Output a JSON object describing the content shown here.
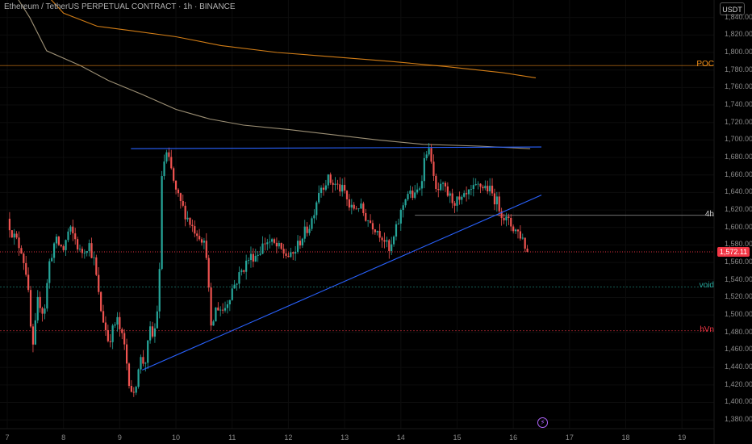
{
  "header": {
    "title": "Ethereum / TetherUS PERPETUAL CONTRACT · 1h · BINANCE"
  },
  "toolbar": {
    "currency": "USDT"
  },
  "icons": {
    "bottom_marker": "lightning-icon"
  },
  "colors": {
    "bull": "#26a69a",
    "bear": "#ef5350",
    "trendline": "#2962ff",
    "vwap_upper": "#f7931a",
    "vwap_lower": "#b8a98a",
    "poc": "#f7931a",
    "hvn": "#f23645",
    "void": "#26a69a",
    "current": "#f23645"
  },
  "chart_data": {
    "type": "candlestick",
    "symbol": "Ethereum / TetherUS PERPETUAL CONTRACT",
    "interval": "1h",
    "exchange": "BINANCE",
    "ylim": [
      1370,
      1860
    ],
    "xlim": [
      7.0,
      19.7
    ],
    "y_ticks": [
      "1,840.00",
      "1,820.00",
      "1,800.00",
      "1,780.00",
      "1,760.00",
      "1,740.00",
      "1,720.00",
      "1,700.00",
      "1,680.00",
      "1,660.00",
      "1,640.00",
      "1,620.00",
      "1,600.00",
      "1,580.00",
      "1,560.00",
      "1,540.00",
      "1,520.00",
      "1,500.00",
      "1,480.00",
      "1,460.00",
      "1,440.00",
      "1,420.00",
      "1,400.00",
      "1,380.00"
    ],
    "x_ticks": [
      {
        "label": "7",
        "x": 7.0
      },
      {
        "label": "8",
        "x": 8.0
      },
      {
        "label": "9",
        "x": 9.0
      },
      {
        "label": "10",
        "x": 10.0
      },
      {
        "label": "11",
        "x": 11.0
      },
      {
        "label": "12",
        "x": 12.0
      },
      {
        "label": "13",
        "x": 13.0
      },
      {
        "label": "14",
        "x": 14.0
      },
      {
        "label": "15",
        "x": 15.0
      },
      {
        "label": "16",
        "x": 16.0
      },
      {
        "label": "17",
        "x": 17.0
      },
      {
        "label": "18",
        "x": 18.0
      },
      {
        "label": "19",
        "x": 19.0
      }
    ],
    "price_path": [
      [
        7.0,
        1610
      ],
      [
        7.1,
        1592
      ],
      [
        7.25,
        1575
      ],
      [
        7.35,
        1545
      ],
      [
        7.45,
        1455
      ],
      [
        7.55,
        1520
      ],
      [
        7.65,
        1500
      ],
      [
        7.75,
        1560
      ],
      [
        7.85,
        1585
      ],
      [
        8.0,
        1575
      ],
      [
        8.1,
        1598
      ],
      [
        8.2,
        1588
      ],
      [
        8.3,
        1570
      ],
      [
        8.45,
        1582
      ],
      [
        8.55,
        1560
      ],
      [
        8.65,
        1510
      ],
      [
        8.8,
        1470
      ],
      [
        8.95,
        1495
      ],
      [
        9.1,
        1460
      ],
      [
        9.15,
        1430
      ],
      [
        9.25,
        1405
      ],
      [
        9.35,
        1450
      ],
      [
        9.45,
        1445
      ],
      [
        9.55,
        1485
      ],
      [
        9.6,
        1470
      ],
      [
        9.7,
        1525
      ],
      [
        9.75,
        1660
      ],
      [
        9.82,
        1685
      ],
      [
        9.9,
        1670
      ],
      [
        10.0,
        1640
      ],
      [
        10.1,
        1625
      ],
      [
        10.2,
        1612
      ],
      [
        10.3,
        1600
      ],
      [
        10.45,
        1590
      ],
      [
        10.55,
        1570
      ],
      [
        10.62,
        1480
      ],
      [
        10.72,
        1510
      ],
      [
        10.85,
        1505
      ],
      [
        11.0,
        1530
      ],
      [
        11.15,
        1548
      ],
      [
        11.3,
        1565
      ],
      [
        11.45,
        1570
      ],
      [
        11.6,
        1585
      ],
      [
        11.75,
        1580
      ],
      [
        11.9,
        1572
      ],
      [
        12.05,
        1565
      ],
      [
        12.25,
        1590
      ],
      [
        12.4,
        1605
      ],
      [
        12.55,
        1645
      ],
      [
        12.7,
        1655
      ],
      [
        12.85,
        1648
      ],
      [
        13.0,
        1640
      ],
      [
        13.1,
        1620
      ],
      [
        13.25,
        1625
      ],
      [
        13.4,
        1610
      ],
      [
        13.55,
        1600
      ],
      [
        13.7,
        1588
      ],
      [
        13.8,
        1570
      ],
      [
        13.95,
        1605
      ],
      [
        14.1,
        1640
      ],
      [
        14.25,
        1635
      ],
      [
        14.35,
        1650
      ],
      [
        14.45,
        1690
      ],
      [
        14.55,
        1680
      ],
      [
        14.6,
        1640
      ],
      [
        14.75,
        1645
      ],
      [
        14.9,
        1632
      ],
      [
        15.05,
        1628
      ],
      [
        15.25,
        1640
      ],
      [
        15.4,
        1648
      ],
      [
        15.55,
        1645
      ],
      [
        15.7,
        1630
      ],
      [
        15.85,
        1610
      ],
      [
        16.0,
        1600
      ],
      [
        16.15,
        1590
      ],
      [
        16.25,
        1572.11
      ]
    ],
    "current_price": 1572.11,
    "current_price_label": "1,572.11",
    "levels": [
      {
        "name": "POC",
        "label": "POC",
        "price": 1785,
        "color": "#f7931a"
      },
      {
        "name": "4h",
        "label": "4h",
        "price": 1614,
        "color": "#cccccc",
        "x_start": 14.25
      },
      {
        "name": "void",
        "label": "void",
        "price": 1532,
        "color": "#26a69a"
      },
      {
        "name": "hVn",
        "label": "hVn",
        "price": 1482,
        "color": "#f23645"
      }
    ],
    "trendlines": [
      {
        "name": "resistance",
        "from": [
          9.2,
          1690
        ],
        "to": [
          16.5,
          1692
        ]
      },
      {
        "name": "support",
        "from": [
          9.4,
          1437
        ],
        "to": [
          16.5,
          1637
        ]
      }
    ],
    "bands": [
      {
        "name": "upper",
        "color": "#f7931a",
        "points": [
          [
            7.0,
            1930
          ],
          [
            7.5,
            1880
          ],
          [
            8.0,
            1845
          ],
          [
            8.6,
            1830
          ],
          [
            9.2,
            1825
          ],
          [
            10.0,
            1818
          ],
          [
            10.8,
            1808
          ],
          [
            11.8,
            1800
          ],
          [
            12.8,
            1795
          ],
          [
            13.8,
            1790
          ],
          [
            14.8,
            1784
          ],
          [
            15.8,
            1777
          ],
          [
            16.4,
            1771
          ]
        ]
      },
      {
        "name": "lower",
        "color": "#b8a98a",
        "points": [
          [
            7.0,
            1880
          ],
          [
            7.4,
            1840
          ],
          [
            7.7,
            1802
          ],
          [
            8.3,
            1785
          ],
          [
            8.8,
            1768
          ],
          [
            9.4,
            1752
          ],
          [
            10.0,
            1735
          ],
          [
            10.6,
            1724
          ],
          [
            11.2,
            1717
          ],
          [
            12.0,
            1712
          ],
          [
            12.8,
            1706
          ],
          [
            13.6,
            1700
          ],
          [
            14.4,
            1695
          ],
          [
            15.4,
            1693
          ],
          [
            16.3,
            1690
          ]
        ]
      }
    ]
  }
}
